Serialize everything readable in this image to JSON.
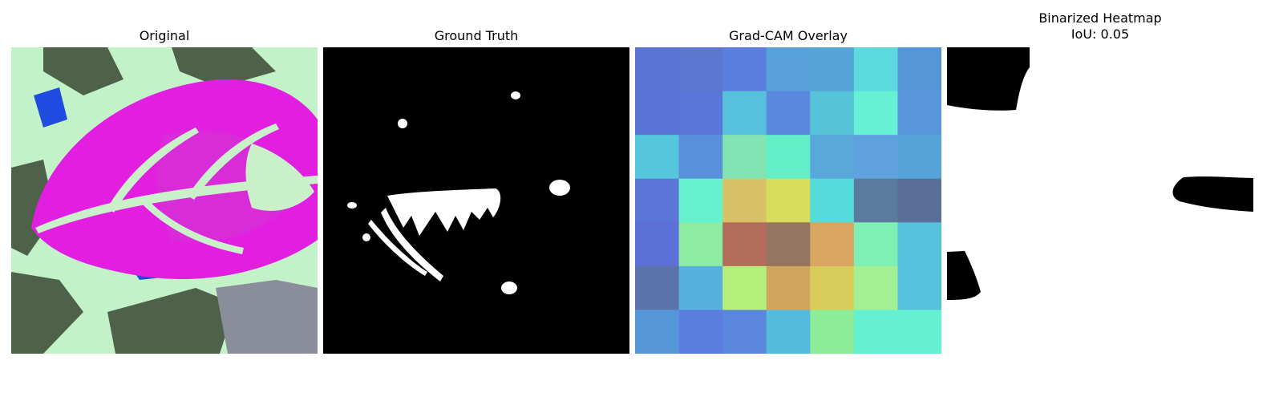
{
  "figure": {
    "panels": [
      {
        "title": "Original"
      },
      {
        "title": "Ground Truth"
      },
      {
        "title": "Grad-CAM Overlay"
      },
      {
        "title_lines": [
          "Binarized Heatmap",
          "IoU: 0.05"
        ]
      }
    ],
    "colors": {
      "leaf_magenta": "#e21fe0",
      "leaf_light": "#d92cd8",
      "vein_mint": "#c9f0c9",
      "background_mint": "#c3f2c9",
      "background_olive": "#4d6248",
      "background_blue": "#1f4be0",
      "background_gray": "#8a8e9b",
      "mask_black": "#000000",
      "mask_white": "#ffffff"
    },
    "gradcam_grid": [
      [
        "#5b74d6",
        "#5c77cf",
        "#5a7ee0",
        "#58a0dc",
        "#55a3d8",
        "#5bd9dd",
        "#5596d8"
      ],
      [
        "#5a74d8",
        "#5a76d8",
        "#55c1dc",
        "#5a88dc",
        "#55c3d8",
        "#66f0d5",
        "#5a96dc"
      ],
      [
        "#55c7dd",
        "#5a8fdc",
        "#82e4b3",
        "#62eec6",
        "#58a8da",
        "#5fa2dd",
        "#55a4d8"
      ],
      [
        "#5b76d8",
        "#65f2cc",
        "#d7c267",
        "#d7dd5d",
        "#55dcda",
        "#5c7a9d",
        "#5a6f98"
      ],
      [
        "#5d70d8",
        "#8ceca1",
        "#b26d5b",
        "#937561",
        "#d8a660",
        "#7ef0b4",
        "#55c2dc"
      ],
      [
        "#5b73aa",
        "#58b1dc",
        "#b6f07c",
        "#d2a55e",
        "#d6cd5b",
        "#a2f093",
        "#55c2dc"
      ],
      [
        "#5597d6",
        "#5a7ee0",
        "#5a86dc",
        "#55bbdc",
        "#8cec98",
        "#66f0d2",
        "#66f0d2"
      ]
    ]
  }
}
